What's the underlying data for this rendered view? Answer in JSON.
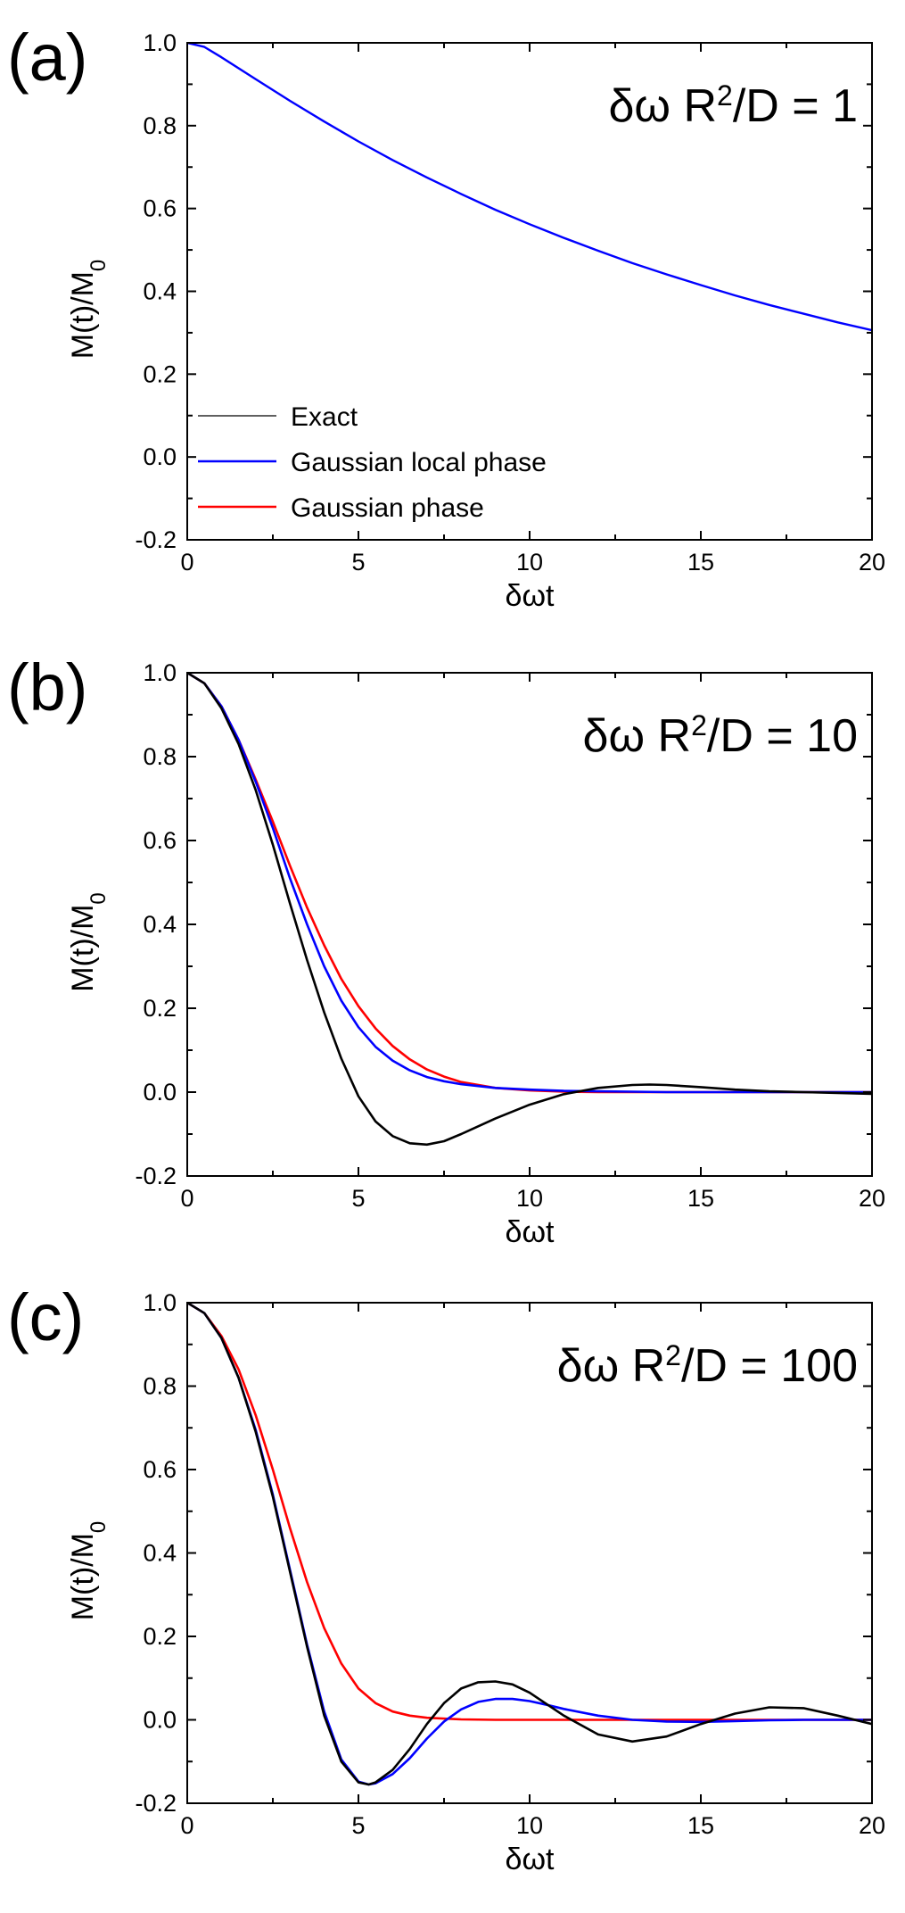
{
  "chart_data": [
    {
      "type": "line",
      "panel_label": "(a)",
      "annotation": {
        "prefix": "δω R",
        "sup": "2",
        "suffix": "/D = 1"
      },
      "xlabel": "δωt",
      "ylabel": {
        "main": "M(t)/M",
        "sub": "0"
      },
      "xlim": [
        0,
        20
      ],
      "ylim": [
        -0.2,
        1.0
      ],
      "xticks": [
        "0",
        "5",
        "10",
        "15",
        "20"
      ],
      "yticks": [
        "-0.2",
        "0.0",
        "0.2",
        "0.4",
        "0.6",
        "0.8",
        "1.0"
      ],
      "legend": [
        "Exact",
        "Gaussian local phase",
        "Gaussian phase"
      ],
      "series": [
        {
          "name": "Exact",
          "color": "#000000",
          "x": [
            0,
            0.5,
            1,
            2,
            3,
            4,
            5,
            6,
            7,
            8,
            9,
            10,
            11,
            12,
            13,
            14,
            15,
            16,
            17,
            18,
            19,
            20
          ],
          "values": [
            1.0,
            0.99,
            0.965,
            0.912,
            0.86,
            0.81,
            0.762,
            0.717,
            0.675,
            0.635,
            0.597,
            0.562,
            0.529,
            0.498,
            0.468,
            0.441,
            0.415,
            0.39,
            0.367,
            0.346,
            0.325,
            0.306
          ]
        },
        {
          "name": "Gaussian local phase",
          "color": "#0000ff",
          "x": [
            0,
            0.5,
            1,
            2,
            3,
            4,
            5,
            6,
            7,
            8,
            9,
            10,
            11,
            12,
            13,
            14,
            15,
            16,
            17,
            18,
            19,
            20
          ],
          "values": [
            1.0,
            0.99,
            0.965,
            0.912,
            0.86,
            0.81,
            0.762,
            0.717,
            0.675,
            0.635,
            0.597,
            0.562,
            0.529,
            0.498,
            0.468,
            0.441,
            0.415,
            0.39,
            0.367,
            0.346,
            0.325,
            0.306
          ]
        },
        {
          "name": "Gaussian phase",
          "color": "#ff0000",
          "x": [
            0,
            0.5,
            1,
            2,
            3,
            4,
            5,
            6,
            7,
            8,
            9,
            10,
            11,
            12,
            13,
            14,
            15,
            16,
            17,
            18,
            19,
            20
          ],
          "values": [
            1.0,
            0.99,
            0.965,
            0.912,
            0.86,
            0.81,
            0.762,
            0.717,
            0.675,
            0.635,
            0.597,
            0.562,
            0.529,
            0.498,
            0.468,
            0.441,
            0.415,
            0.39,
            0.367,
            0.346,
            0.325,
            0.306
          ]
        }
      ]
    },
    {
      "type": "line",
      "panel_label": "(b)",
      "annotation": {
        "prefix": "δω R",
        "sup": "2",
        "suffix": "/D = 10"
      },
      "xlabel": "δωt",
      "ylabel": {
        "main": "M(t)/M",
        "sub": "0"
      },
      "xlim": [
        0,
        20
      ],
      "ylim": [
        -0.2,
        1.0
      ],
      "xticks": [
        "0",
        "5",
        "10",
        "15",
        "20"
      ],
      "yticks": [
        "-0.2",
        "0.0",
        "0.2",
        "0.4",
        "0.6",
        "0.8",
        "1.0"
      ],
      "series": [
        {
          "name": "Gaussian phase",
          "color": "#ff0000",
          "x": [
            0,
            0.5,
            1,
            1.5,
            2,
            2.5,
            3,
            3.5,
            4,
            4.5,
            5,
            5.5,
            6,
            6.5,
            7,
            7.5,
            8,
            9,
            10,
            11,
            12,
            13,
            14,
            15,
            16,
            17,
            18,
            19,
            20
          ],
          "values": [
            1.0,
            0.975,
            0.92,
            0.84,
            0.745,
            0.645,
            0.54,
            0.44,
            0.35,
            0.27,
            0.205,
            0.152,
            0.11,
            0.078,
            0.054,
            0.037,
            0.024,
            0.01,
            0.004,
            0.001,
            0.0,
            0.0,
            0.0,
            0.0,
            0.0,
            0.0,
            0.0,
            0.0,
            0.0
          ]
        },
        {
          "name": "Gaussian local phase",
          "color": "#0000ff",
          "x": [
            0,
            0.5,
            1,
            1.5,
            2,
            2.5,
            3,
            3.5,
            4,
            4.5,
            5,
            5.5,
            6,
            6.5,
            7,
            7.5,
            8,
            9,
            10,
            11,
            12,
            13,
            14,
            15,
            16,
            17,
            18,
            19,
            20
          ],
          "values": [
            1.0,
            0.975,
            0.92,
            0.84,
            0.74,
            0.63,
            0.51,
            0.4,
            0.3,
            0.218,
            0.155,
            0.108,
            0.075,
            0.052,
            0.036,
            0.026,
            0.019,
            0.01,
            0.006,
            0.003,
            0.002,
            0.001,
            0.0,
            0.0,
            0.0,
            0.0,
            0.0,
            0.0,
            0.0
          ]
        },
        {
          "name": "Exact",
          "color": "#000000",
          "x": [
            0,
            0.5,
            1,
            1.5,
            2,
            2.5,
            3,
            3.5,
            4,
            4.5,
            5,
            5.5,
            6,
            6.5,
            7,
            7.5,
            8,
            9,
            10,
            11,
            12,
            13,
            13.5,
            14,
            15,
            16,
            17,
            18,
            19,
            20
          ],
          "values": [
            1.0,
            0.975,
            0.915,
            0.83,
            0.72,
            0.59,
            0.45,
            0.315,
            0.19,
            0.08,
            -0.01,
            -0.07,
            -0.105,
            -0.122,
            -0.125,
            -0.117,
            -0.1,
            -0.063,
            -0.03,
            -0.005,
            0.01,
            0.017,
            0.018,
            0.017,
            0.012,
            0.006,
            0.002,
            0.0,
            -0.002,
            -0.004
          ]
        }
      ]
    },
    {
      "type": "line",
      "panel_label": "(c)",
      "annotation": {
        "prefix": "δω R",
        "sup": "2",
        "suffix": "/D = 100"
      },
      "xlabel": "δωt",
      "ylabel": {
        "main": "M(t)/M",
        "sub": "0"
      },
      "xlim": [
        0,
        20
      ],
      "ylim": [
        -0.2,
        1.0
      ],
      "xticks": [
        "0",
        "5",
        "10",
        "15",
        "20"
      ],
      "yticks": [
        "-0.2",
        "0.0",
        "0.2",
        "0.4",
        "0.6",
        "0.8",
        "1.0"
      ],
      "series": [
        {
          "name": "Gaussian phase",
          "color": "#ff0000",
          "x": [
            0,
            0.5,
            1,
            1.5,
            2,
            2.5,
            3,
            3.5,
            4,
            4.5,
            5,
            5.5,
            6,
            6.5,
            7,
            8,
            9,
            10,
            12,
            14,
            16,
            18,
            20
          ],
          "values": [
            1.0,
            0.975,
            0.92,
            0.84,
            0.73,
            0.6,
            0.46,
            0.33,
            0.22,
            0.135,
            0.075,
            0.04,
            0.02,
            0.01,
            0.005,
            0.001,
            0.0,
            0.0,
            0.0,
            0.0,
            0.0,
            0.0,
            0.0
          ]
        },
        {
          "name": "Gaussian local phase",
          "color": "#0000ff",
          "x": [
            0,
            0.5,
            1,
            1.5,
            2,
            2.5,
            3,
            3.5,
            4,
            4.5,
            5,
            5.3,
            5.5,
            6,
            6.5,
            7,
            7.5,
            8,
            8.5,
            9,
            9.5,
            10,
            10.5,
            11,
            12,
            13,
            14,
            15,
            16,
            17,
            18,
            19,
            20
          ],
          "values": [
            1.0,
            0.975,
            0.915,
            0.82,
            0.695,
            0.54,
            0.36,
            0.18,
            0.02,
            -0.095,
            -0.148,
            -0.155,
            -0.152,
            -0.13,
            -0.092,
            -0.045,
            -0.004,
            0.025,
            0.043,
            0.05,
            0.05,
            0.045,
            0.036,
            0.026,
            0.01,
            0.0,
            -0.004,
            -0.005,
            -0.003,
            -0.001,
            0.0,
            0.0,
            0.0
          ]
        },
        {
          "name": "Exact",
          "color": "#000000",
          "x": [
            0,
            0.5,
            1,
            1.5,
            2,
            2.5,
            3,
            3.5,
            4,
            4.5,
            5,
            5.3,
            5.5,
            6,
            6.5,
            7,
            7.5,
            8,
            8.5,
            9,
            9.5,
            10,
            11,
            12,
            13,
            14,
            15,
            16,
            17,
            18,
            19,
            20
          ],
          "values": [
            1.0,
            0.975,
            0.915,
            0.82,
            0.69,
            0.535,
            0.355,
            0.175,
            0.01,
            -0.1,
            -0.15,
            -0.155,
            -0.15,
            -0.12,
            -0.07,
            -0.01,
            0.04,
            0.075,
            0.09,
            0.092,
            0.085,
            0.065,
            0.01,
            -0.035,
            -0.052,
            -0.04,
            -0.01,
            0.015,
            0.03,
            0.028,
            0.01,
            -0.01
          ]
        }
      ]
    }
  ]
}
